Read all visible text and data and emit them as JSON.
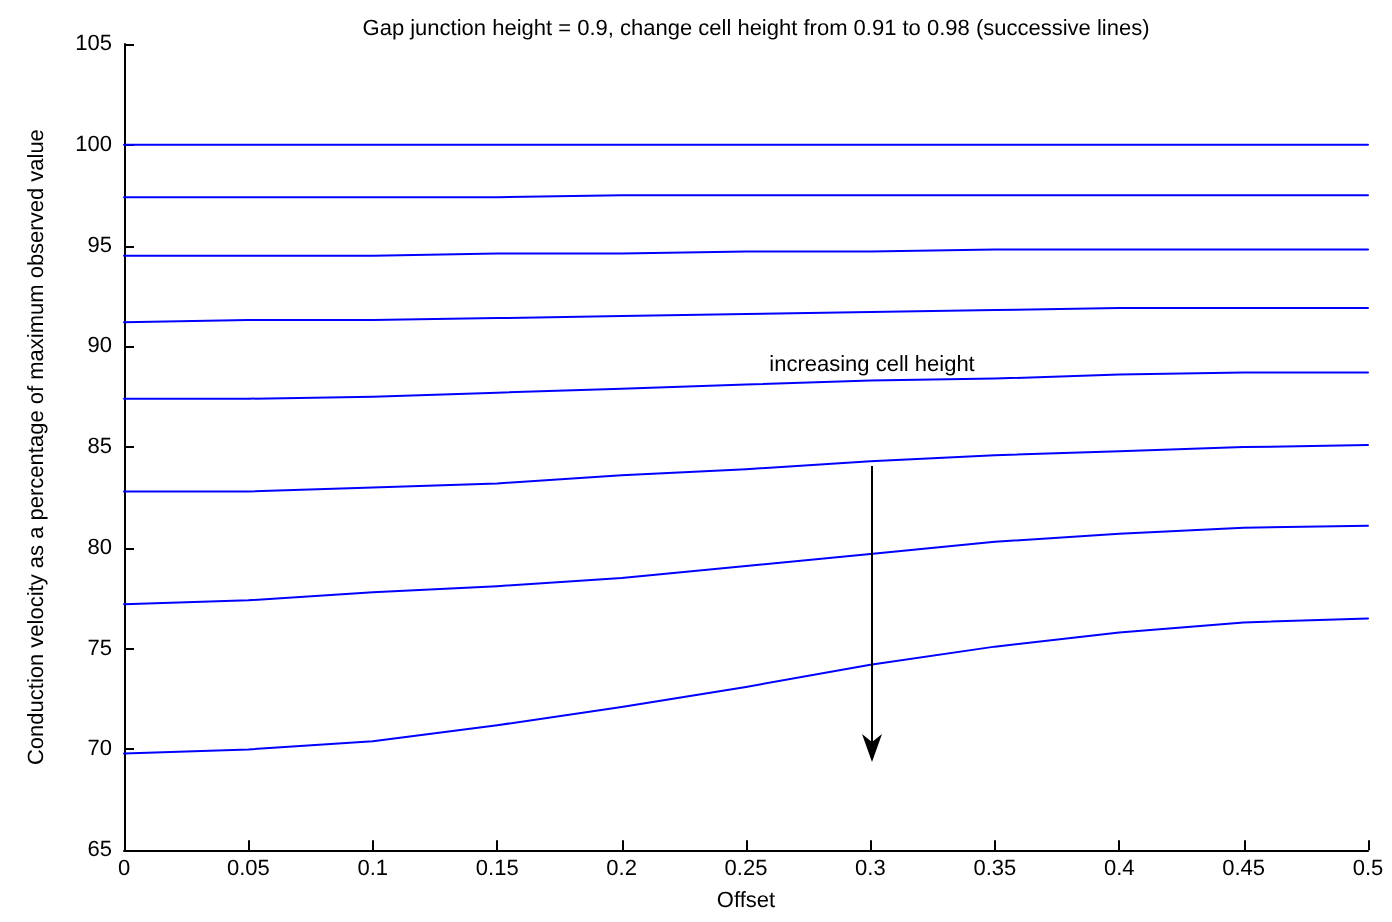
{
  "chart_data": {
    "type": "line",
    "title": "Gap junction height = 0.9, change cell height from 0.91 to 0.98 (successive lines)",
    "xlabel": "Offset",
    "ylabel": "Conduction velocity as a percentage of maximum observed value",
    "x": [
      0,
      0.05,
      0.1,
      0.15,
      0.2,
      0.25,
      0.3,
      0.35,
      0.4,
      0.45,
      0.5
    ],
    "series": [
      {
        "color": "#0000ff",
        "values": [
          100,
          100,
          100,
          100,
          100,
          100,
          100,
          100,
          100,
          100,
          100
        ]
      },
      {
        "color": "#0000ff",
        "values": [
          97.4,
          97.4,
          97.4,
          97.4,
          97.5,
          97.5,
          97.5,
          97.5,
          97.5,
          97.5,
          97.5
        ]
      },
      {
        "color": "#0000ff",
        "values": [
          94.5,
          94.5,
          94.5,
          94.6,
          94.6,
          94.7,
          94.7,
          94.8,
          94.8,
          94.8,
          94.8
        ]
      },
      {
        "color": "#0000ff",
        "values": [
          91.2,
          91.3,
          91.3,
          91.4,
          91.5,
          91.6,
          91.7,
          91.8,
          91.9,
          91.9,
          91.9
        ]
      },
      {
        "color": "#0000ff",
        "values": [
          87.4,
          87.4,
          87.5,
          87.7,
          87.9,
          88.1,
          88.3,
          88.4,
          88.6,
          88.7,
          88.7
        ]
      },
      {
        "color": "#0000ff",
        "values": [
          82.8,
          82.8,
          83.0,
          83.2,
          83.6,
          83.9,
          84.3,
          84.6,
          84.8,
          85.0,
          85.1
        ]
      },
      {
        "color": "#0000ff",
        "values": [
          77.2,
          77.4,
          77.8,
          78.1,
          78.5,
          79.1,
          79.7,
          80.3,
          80.7,
          81.0,
          81.1
        ]
      },
      {
        "color": "#0000ff",
        "values": [
          69.8,
          70.0,
          70.4,
          71.2,
          72.1,
          73.1,
          74.2,
          75.1,
          75.8,
          76.3,
          76.5
        ]
      }
    ],
    "xlim": [
      0,
      0.5
    ],
    "xticks": [
      0,
      0.05,
      0.1,
      0.15,
      0.2,
      0.25,
      0.3,
      0.35,
      0.4,
      0.45,
      0.5
    ],
    "ylim": [
      65,
      105
    ],
    "yticks": [
      65,
      70,
      75,
      80,
      85,
      90,
      95,
      100,
      105
    ],
    "annotations": [
      "increasing cell height"
    ],
    "grid": false,
    "marker": "none",
    "line_style": "solid"
  }
}
